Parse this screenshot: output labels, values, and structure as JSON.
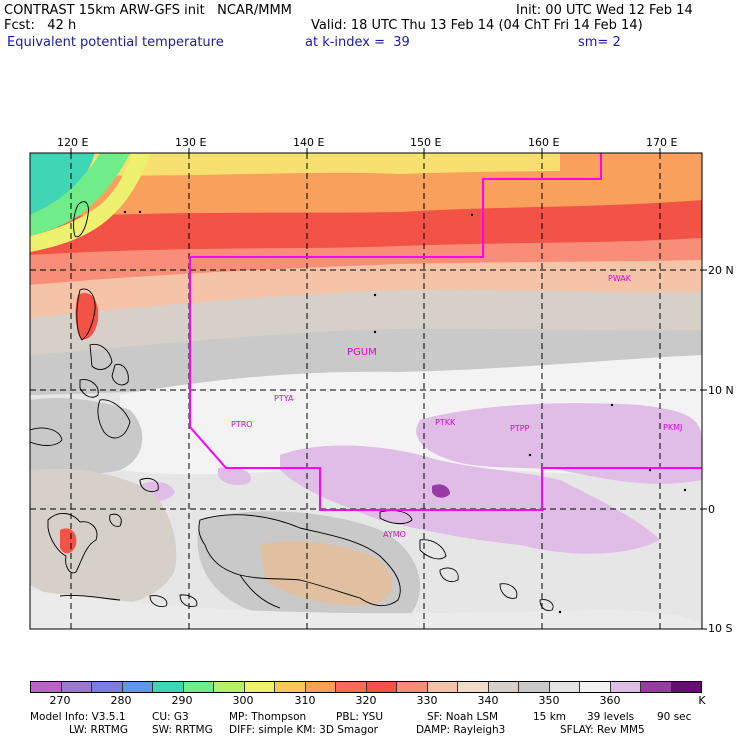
{
  "header": {
    "title": "CONTRAST 15km ARW-GFS init   NCAR/MMM",
    "init": "Init: 00 UTC Wed 12 Feb 14",
    "fcst": "Fcst:   42 h",
    "valid": "Valid: 18 UTC Thu 13 Feb 14 (04 ChT Fri 14 Feb 14)",
    "field": "Equivalent potential temperature",
    "level": "at k-index =  39",
    "smooth": "sm= 2"
  },
  "axes": {
    "lon_labels": [
      "120 E",
      "130 E",
      "140 E",
      "150 E",
      "160 E",
      "170 E"
    ],
    "lat_labels": [
      "20 N",
      "10 N",
      "0",
      "10 S"
    ]
  },
  "stations": [
    "PWAK",
    "PGUM",
    "PTYA",
    "PTRO",
    "PTKK",
    "PTPP",
    "PKMJ",
    "AYMO"
  ],
  "colorbar": {
    "labels": [
      "270",
      "280",
      "290",
      "300",
      "310",
      "320",
      "330",
      "340",
      "350",
      "360"
    ],
    "unit": "K",
    "colors": [
      "#c15fd0",
      "#9a79d6",
      "#7b7ee0",
      "#5a9ae6",
      "#3fd6b6",
      "#70ec88",
      "#b4f06c",
      "#eef070",
      "#f7c85e",
      "#f9a15c",
      "#f96c58",
      "#f35246",
      "#f88e78",
      "#f5c3a8",
      "#f0dcc8",
      "#d6d0c8",
      "#c9c9c9",
      "#e3e3e3",
      "#f3f3f3",
      "#e0bde6",
      "#9a3aa6",
      "#6a0a78"
    ]
  },
  "footer": {
    "line1": [
      "Model Info: V3.5.1",
      "CU: G3",
      "MP: Thompson",
      "PBL: YSU",
      "SF: Noah LSM",
      "15 km",
      "39 levels",
      "90 sec"
    ],
    "line2": [
      "LW: RRTMG",
      "SW: RRTMG",
      "DIFF: simple KM: 3D Smagor",
      "DAMP: Rayleigh3",
      "SFLAY: Rev MM5"
    ]
  }
}
